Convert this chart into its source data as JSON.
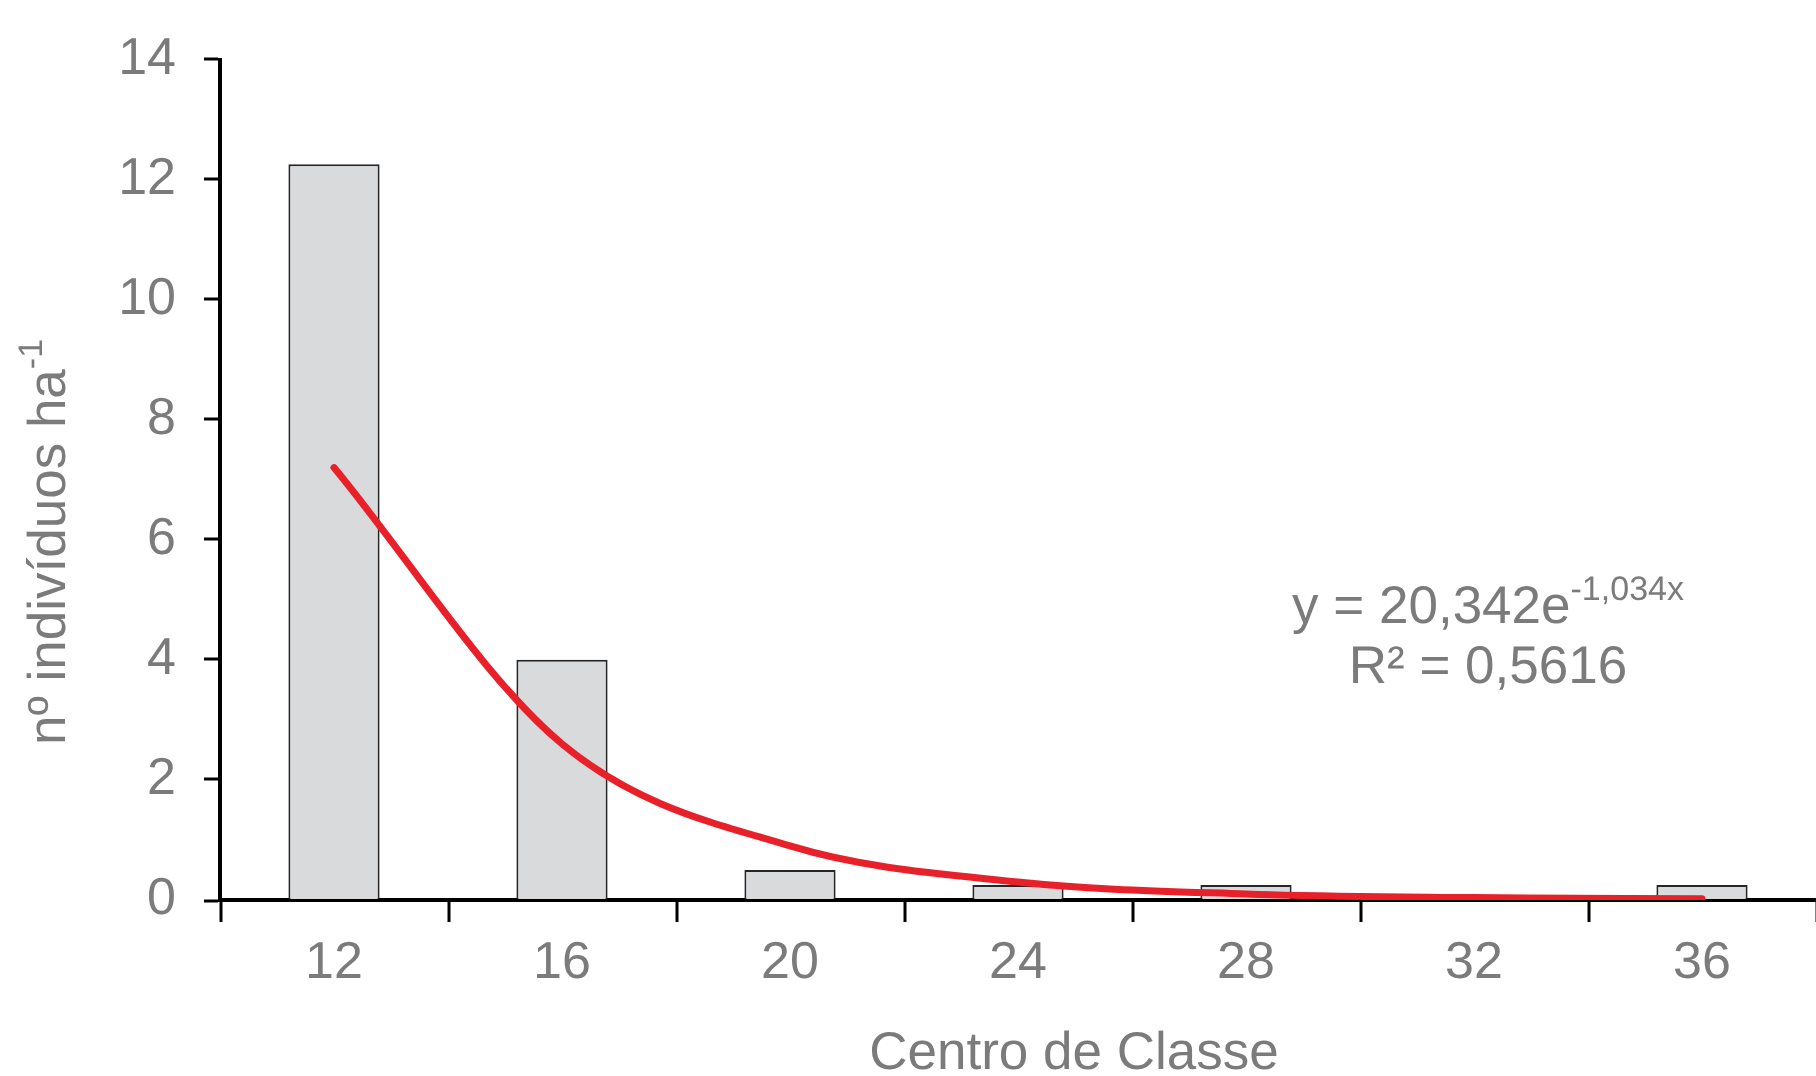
{
  "chart_data": {
    "type": "bar",
    "xlabel": "Centro de Classe",
    "ylabel": "nº indivíduos ha$^{-1}$",
    "categories": [
      "12",
      "16",
      "20",
      "24",
      "28",
      "32",
      "36"
    ],
    "series": [
      {
        "color": "#d9dadc",
        "values": [
          12.25,
          4,
          0.5,
          0.25,
          0.25,
          0,
          0.25
        ]
      },
      {
        "type": "line",
        "color": "#e8202a",
        "x": [
          "12",
          "16",
          "20",
          "24",
          "28",
          "32",
          "36"
        ],
        "values": [
          7.2,
          2.6,
          0.9,
          0.3,
          0.1,
          0.04,
          0.02
        ]
      }
    ],
    "ylim": [
      0,
      14
    ],
    "yticks": [
      0,
      2,
      4,
      6,
      8,
      10,
      12,
      14
    ],
    "annotations": [
      "y = 20,342e$^{-1,034x}$",
      "R² = 0,5616"
    ],
    "marker": "none",
    "grid": false,
    "legend": false
  }
}
